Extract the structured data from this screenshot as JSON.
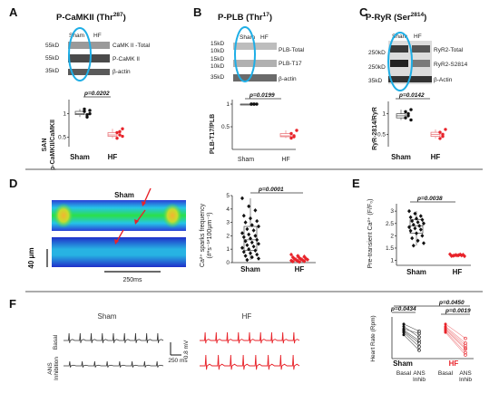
{
  "panels": {
    "A": {
      "letter": "A",
      "title": "P-CaMKII (Thr",
      "sup": "287",
      "title_end": ")",
      "mw": [
        "55kD",
        "55kD",
        "35kD"
      ],
      "bands": [
        "CaMK II -Total",
        "P-CaMK II",
        "β-actin"
      ],
      "lanes": [
        "Sham",
        "HF"
      ],
      "ylabel": "p-CaMKII/CaMKII",
      "ylabel2": "SAN",
      "pval": "p=0.0202"
    },
    "B": {
      "letter": "B",
      "title": "P-PLB (Thr",
      "sup": "17",
      "title_end": ")",
      "mw": [
        "15kD",
        "10kD",
        "15kD",
        "10kD",
        "35kD"
      ],
      "bands": [
        "PLB-Total",
        "PLB-T17",
        "β-actin"
      ],
      "lanes": [
        "Sham",
        "HF"
      ],
      "ylabel": "PLB-T17/PLB",
      "pval": "p=0.0199"
    },
    "C": {
      "letter": "C",
      "title": "P-RyR (Ser",
      "sup": "2814",
      "title_end": ")",
      "mw": [
        "250kD",
        "250kD",
        "35kD"
      ],
      "bands": [
        "RyR2-Total",
        "RyR2-S2814",
        "β-Actin"
      ],
      "lanes": [
        "Sham",
        "HF"
      ],
      "ylabel": "RyR-2814/RyR",
      "pval": "p=0.0142"
    },
    "D": {
      "letter": "D",
      "img_sham": "Sham",
      "img_hf": "HF",
      "scale_y": "40 μm",
      "scale_x": "250ms",
      "ylabel": "Ca²⁺ sparks frequency",
      "ylabel2": "(#*s⁻¹*100μm⁻¹)",
      "pval": "p=0.0001"
    },
    "E": {
      "letter": "E",
      "ylabel": "Pre-transient Ca²⁺ (F/F₀)",
      "pval": "p=0.0038"
    },
    "F": {
      "letter": "F",
      "col_sham": "Sham",
      "col_hf": "HF",
      "row_basal": "Basal",
      "row_ans": "ANS",
      "row_ans2": "Inhibition",
      "scale_mv": "0.8 mV",
      "scale_ms": "250 ms",
      "ylabel": "Heart Rate (Rpm)",
      "pval1": "p=0.0434",
      "pval2": "p=0.0450",
      "pval3": "p=0.0019",
      "legend_sham": "Sham",
      "legend_hf": "HF",
      "xt1": "Basal",
      "xt2": "ANS",
      "xt2b": "Inhib",
      "xt3": "Basal",
      "xt4": "ANS",
      "xt4b": "Inhib"
    }
  },
  "colors": {
    "sham": "#111111",
    "hf": "#e8232a",
    "ellipse": "#1eaee6"
  },
  "chart_data": [
    {
      "panel": "A",
      "type": "scatter",
      "ylabel": "p-CaMKII/CaMKII",
      "yticks": [
        0.5,
        1.0
      ],
      "ylim": [
        0.3,
        1.3
      ],
      "categories": [
        "Sham",
        "HF"
      ],
      "series": [
        {
          "name": "Sham",
          "values": [
            1.05,
            0.98,
            1.0,
            1.1,
            0.93,
            1.07
          ]
        },
        {
          "name": "HF",
          "values": [
            0.6,
            0.55,
            0.68,
            0.48,
            0.62,
            0.52
          ]
        }
      ]
    },
    {
      "panel": "B",
      "type": "scatter",
      "ylabel": "PLB-T17/PLB",
      "yticks": [
        0.5,
        1.0
      ],
      "ylim": [
        0,
        1.1
      ],
      "categories": [
        "Sham",
        "HF"
      ],
      "series": [
        {
          "name": "Sham",
          "values": [
            1.0,
            1.0,
            1.0,
            1.0,
            1.0
          ]
        },
        {
          "name": "HF",
          "values": [
            0.35,
            0.28,
            0.42,
            0.25,
            0.3
          ]
        }
      ]
    },
    {
      "panel": "C",
      "type": "scatter",
      "ylabel": "RyR-2814/RyR",
      "yticks": [
        0.5,
        1.0
      ],
      "ylim": [
        0.2,
        1.3
      ],
      "categories": [
        "Sham",
        "HF"
      ],
      "series": [
        {
          "name": "Sham",
          "values": [
            1.05,
            0.95,
            1.1,
            0.9,
            1.0,
            0.85
          ]
        },
        {
          "name": "HF",
          "values": [
            0.55,
            0.45,
            0.62,
            0.4,
            0.5
          ]
        }
      ]
    },
    {
      "panel": "D",
      "type": "scatter",
      "yticks": [
        0,
        1,
        2,
        3,
        4,
        5
      ],
      "ylim": [
        0,
        5
      ],
      "categories": [
        "Sham",
        "HF"
      ],
      "series": [
        {
          "name": "Sham",
          "values": [
            4.8,
            4.2,
            3.9,
            3.5,
            3.3,
            3.1,
            3.0,
            2.8,
            2.7,
            2.5,
            2.4,
            2.2,
            2.1,
            2.0,
            1.9,
            1.8,
            1.7,
            1.6,
            1.5,
            1.4,
            1.3,
            1.2,
            1.1,
            1.0,
            0.9,
            0.8,
            0.7,
            0.6,
            0.5,
            0.4,
            0.3,
            0.2
          ]
        },
        {
          "name": "HF",
          "values": [
            0.6,
            0.5,
            0.45,
            0.4,
            0.35,
            0.3,
            0.28,
            0.25,
            0.22,
            0.2,
            0.18,
            0.15,
            0.12,
            0.1,
            0.08,
            0.05
          ]
        }
      ]
    },
    {
      "panel": "E",
      "type": "scatter",
      "yticks": [
        1,
        1.5,
        2,
        2.5,
        3
      ],
      "ylim": [
        0.8,
        3.3
      ],
      "categories": [
        "Sham",
        "HF"
      ],
      "series": [
        {
          "name": "Sham",
          "values": [
            3.0,
            2.9,
            2.8,
            2.75,
            2.7,
            2.65,
            2.6,
            2.55,
            2.5,
            2.45,
            2.4,
            2.35,
            2.3,
            2.25,
            2.2,
            2.1,
            2.0,
            1.9,
            1.8,
            1.7,
            1.6
          ]
        },
        {
          "name": "HF",
          "values": [
            1.25,
            1.22,
            1.2,
            1.18,
            1.2,
            1.23,
            1.19,
            1.21,
            1.17,
            1.2,
            1.24
          ]
        }
      ]
    },
    {
      "panel": "F",
      "type": "line",
      "ylabel": "Heart Rate (Rpm)",
      "categories": [
        "Basal",
        "ANS Inhib",
        "Basal",
        "ANS Inhib"
      ],
      "series": [
        {
          "name": "Sham",
          "pairs": [
            [
              540,
              480
            ],
            [
              520,
              430
            ],
            [
              500,
              460
            ],
            [
              490,
              400
            ],
            [
              480,
              380
            ],
            [
              470,
              350
            ],
            [
              450,
              320
            ]
          ]
        },
        {
          "name": "HF",
          "pairs": [
            [
              540,
              420
            ],
            [
              520,
              380
            ],
            [
              510,
              360
            ],
            [
              500,
              340
            ],
            [
              490,
              330
            ],
            [
              480,
              300
            ],
            [
              470,
              280
            ]
          ]
        }
      ]
    }
  ]
}
